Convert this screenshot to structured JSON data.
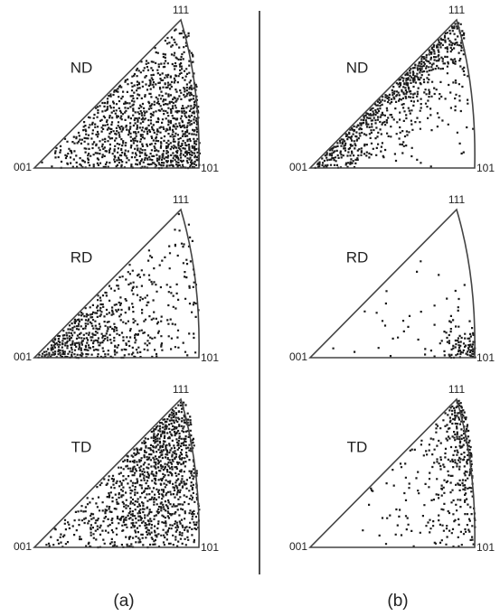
{
  "columns": [
    {
      "label": "(a)",
      "triangles": [
        {
          "direction": "ND",
          "top": "111",
          "left": "001",
          "right": "101"
        },
        {
          "direction": "RD",
          "top": "111",
          "left": "001",
          "right": "101"
        },
        {
          "direction": "TD",
          "top": "111",
          "left": "001",
          "right": "101"
        }
      ]
    },
    {
      "label": "(b)",
      "triangles": [
        {
          "direction": "ND",
          "top": "111",
          "left": "001",
          "right": "101"
        },
        {
          "direction": "RD",
          "top": "111",
          "left": "001",
          "right": "101"
        },
        {
          "direction": "TD",
          "top": "111",
          "left": "001",
          "right": "101"
        }
      ]
    }
  ]
}
